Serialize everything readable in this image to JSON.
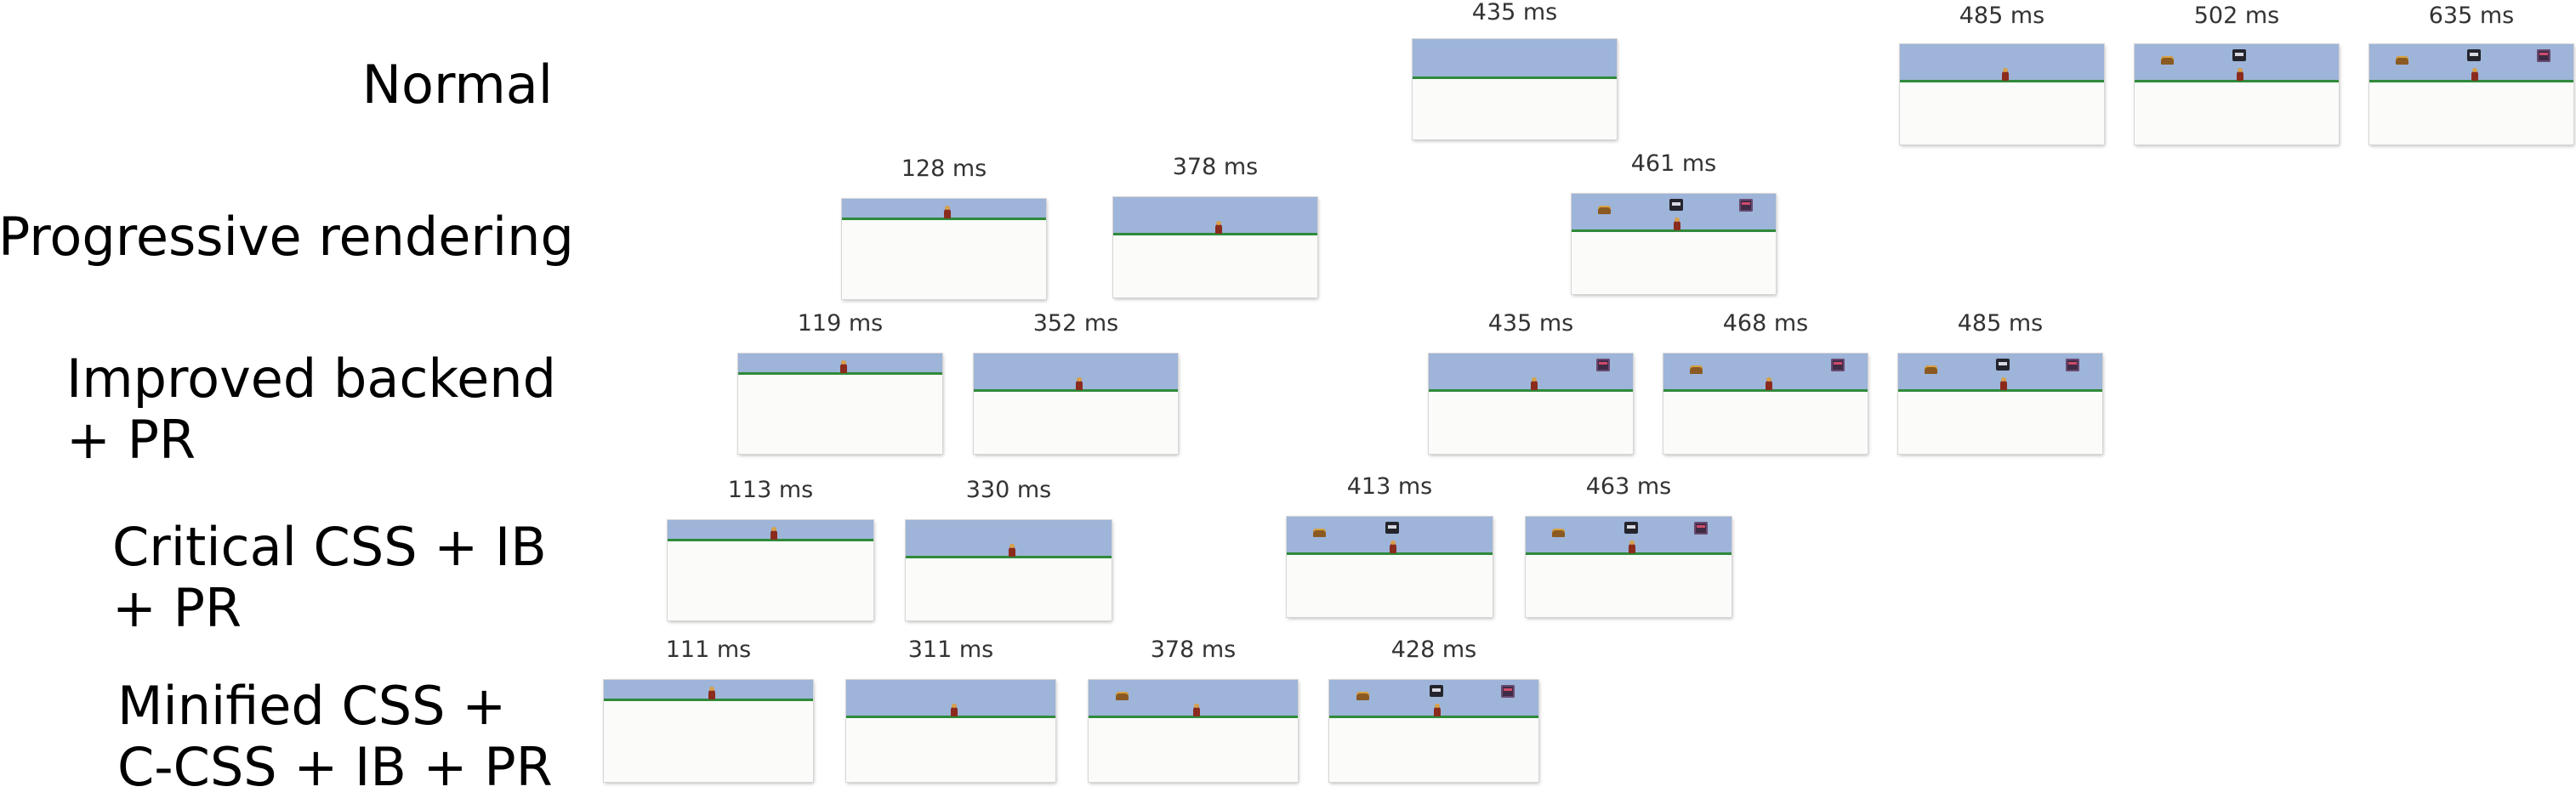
{
  "rows": [
    {
      "label_lines": [
        "Normal"
      ],
      "frames": [
        {
          "time": "435 ms",
          "scene": "empty"
        },
        {
          "time": "485 ms",
          "scene": "player"
        },
        {
          "time": "502 ms",
          "scene": "player-chest-car"
        },
        {
          "time": "635 ms",
          "scene": "full"
        }
      ]
    },
    {
      "label_lines": [
        "Progressive rendering"
      ],
      "frames": [
        {
          "time": "128 ms",
          "scene": "player"
        },
        {
          "time": "378 ms",
          "scene": "player"
        },
        {
          "time": "461 ms",
          "scene": "full"
        }
      ]
    },
    {
      "label_lines": [
        "Improved backend",
        "+ PR"
      ],
      "frames": [
        {
          "time": "119 ms",
          "scene": "player"
        },
        {
          "time": "352 ms",
          "scene": "player"
        },
        {
          "time": "435 ms",
          "scene": "player-monster"
        },
        {
          "time": "468 ms",
          "scene": "player-chest-monster"
        },
        {
          "time": "485 ms",
          "scene": "full"
        }
      ]
    },
    {
      "label_lines": [
        "Critical CSS + IB",
        "+ PR"
      ],
      "frames": [
        {
          "time": "113 ms",
          "scene": "player"
        },
        {
          "time": "330 ms",
          "scene": "player"
        },
        {
          "time": "413 ms",
          "scene": "player-chest-car"
        },
        {
          "time": "463 ms",
          "scene": "full"
        }
      ]
    },
    {
      "label_lines": [
        "Minified CSS +",
        "C-CSS + IB + PR"
      ],
      "frames": [
        {
          "time": "111 ms",
          "scene": "player"
        },
        {
          "time": "311 ms",
          "scene": "player"
        },
        {
          "time": "378 ms",
          "scene": "player-chest"
        },
        {
          "time": "428 ms",
          "scene": "full"
        }
      ]
    }
  ],
  "colors": {
    "sky": "#9eb4d9",
    "ground": "#2f8a3a",
    "page_background": "#fbfcf9"
  },
  "sprite_names": {
    "player": "player-sprite",
    "chest": "treasure-chest-sprite",
    "car": "car-sprite",
    "monster": "monster-sprite"
  }
}
